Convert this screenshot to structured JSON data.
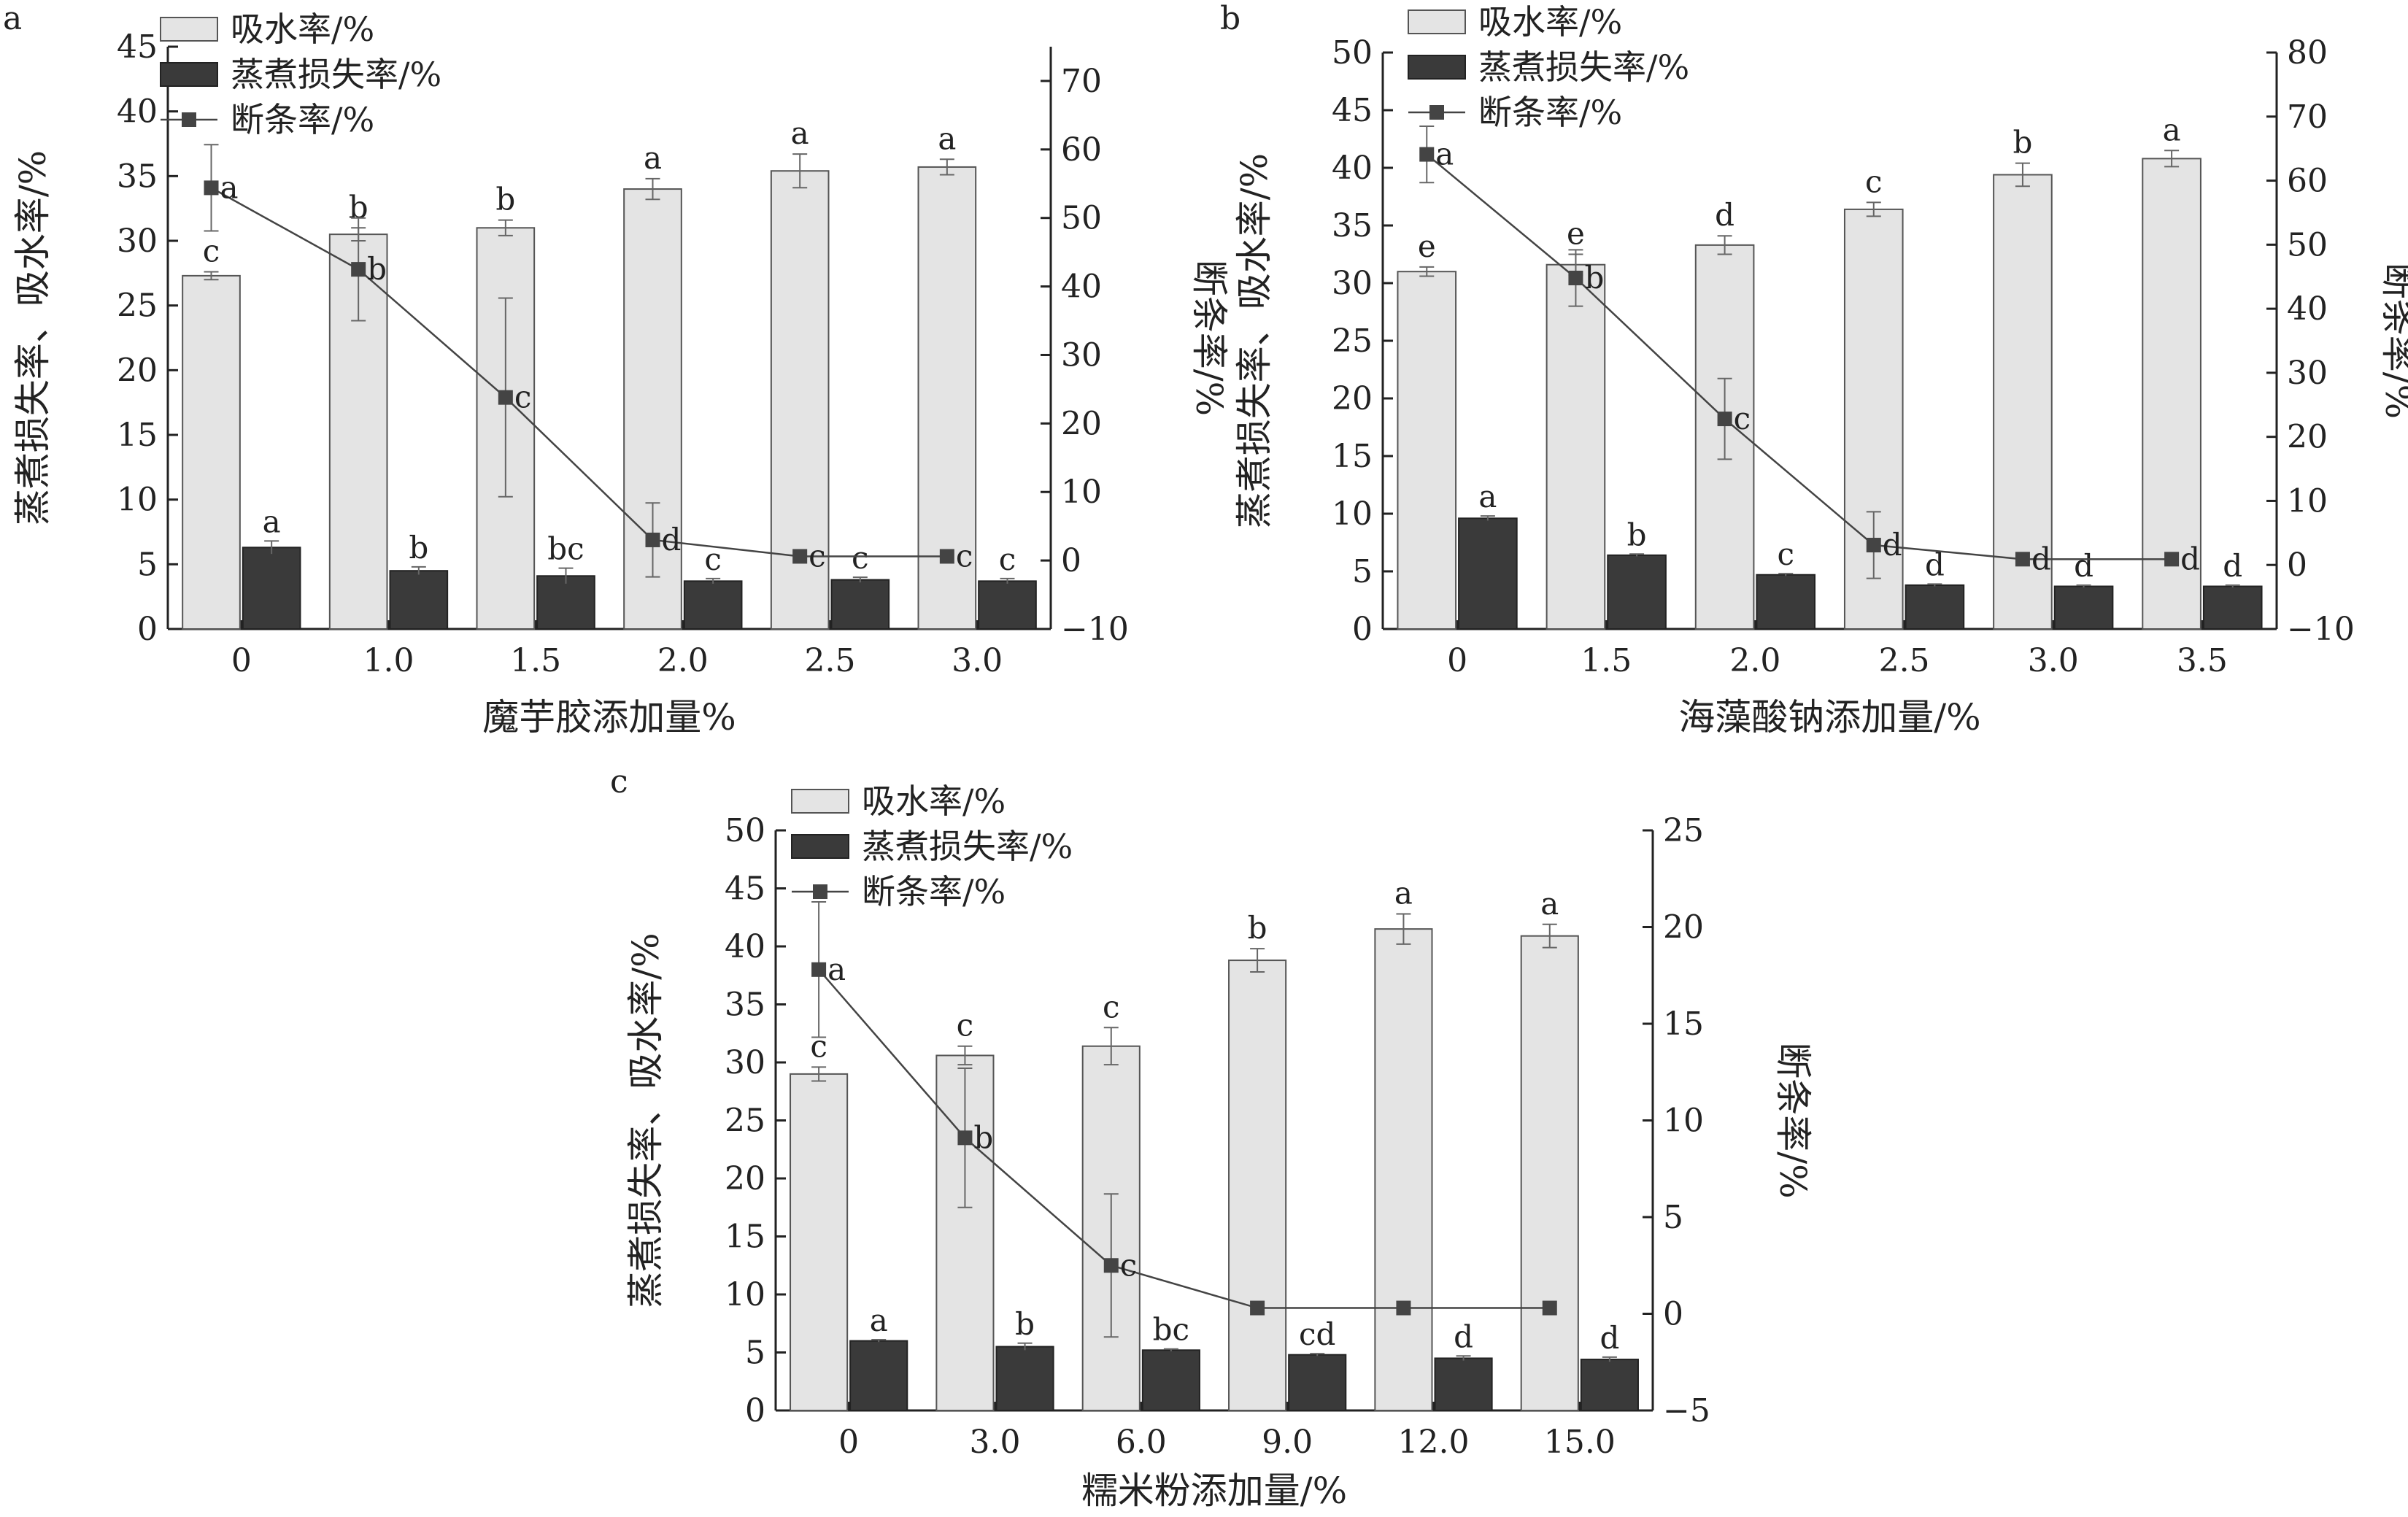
{
  "chart_data": [
    {
      "panel": "a",
      "type": "bar",
      "xlabel": "魔芋胶添加量%",
      "ylabel_left": "蒸煮损失率、吸水率/%",
      "ylabel_right": "断条率/%",
      "ylim_left": [
        0,
        45
      ],
      "ylim_right": [
        -10,
        75
      ],
      "yticks_left": [
        "0",
        "5",
        "10",
        "15",
        "20",
        "25",
        "30",
        "35",
        "40",
        "45"
      ],
      "yticks_right": [
        "−10",
        "0",
        "10",
        "20",
        "30",
        "40",
        "50",
        "60",
        "70"
      ],
      "categories": [
        "0",
        "1.0",
        "1.5",
        "2.0",
        "2.5",
        "3.0"
      ],
      "legend": [
        "吸水率/%",
        "蒸煮损失率/%",
        "断条率/%"
      ],
      "series": [
        {
          "name": "吸水率/%",
          "axis": "left",
          "kind": "bar",
          "values": [
            27.3,
            30.5,
            31.0,
            34.0,
            35.4,
            35.7
          ],
          "errors": [
            0.3,
            0.5,
            0.6,
            0.8,
            1.3,
            0.6
          ],
          "letters": [
            "c",
            "b",
            "b",
            "a",
            "a",
            "a"
          ]
        },
        {
          "name": "蒸煮损失率/%",
          "axis": "left",
          "kind": "bar",
          "values": [
            6.3,
            4.5,
            4.1,
            3.7,
            3.8,
            3.7
          ],
          "errors": [
            0.5,
            0.3,
            0.6,
            0.2,
            0.2,
            0.2
          ],
          "letters": [
            "a",
            "b",
            "bc",
            "c",
            "c",
            "c"
          ]
        },
        {
          "name": "断条率/%",
          "axis": "right",
          "kind": "line",
          "values": [
            54.4,
            42.5,
            23.8,
            3.0,
            0.6,
            0.6
          ],
          "errors": [
            6.3,
            7.5,
            14.5,
            5.4,
            0,
            0
          ],
          "letters": [
            "a",
            "b",
            "c",
            "d",
            "c",
            "c"
          ]
        }
      ]
    },
    {
      "panel": "b",
      "type": "bar",
      "xlabel": "海藻酸钠添加量/%",
      "ylabel_left": "蒸煮损失率、吸水率/%",
      "ylabel_right": "断条率/%",
      "ylim_left": [
        0,
        50
      ],
      "ylim_right": [
        -10,
        80
      ],
      "yticks_left": [
        "0",
        "5",
        "10",
        "15",
        "20",
        "25",
        "30",
        "35",
        "40",
        "45",
        "50"
      ],
      "yticks_right": [
        "−10",
        "0",
        "10",
        "20",
        "30",
        "40",
        "50",
        "60",
        "70",
        "80"
      ],
      "categories": [
        "0",
        "1.5",
        "2.0",
        "2.5",
        "3.0",
        "3.5"
      ],
      "legend": [
        "吸水率/%",
        "蒸煮损失率/%",
        "断条率/%"
      ],
      "series": [
        {
          "name": "吸水率/%",
          "axis": "left",
          "kind": "bar",
          "values": [
            31.0,
            31.6,
            33.3,
            36.4,
            39.4,
            40.8
          ],
          "errors": [
            0.4,
            0.9,
            0.8,
            0.6,
            1.0,
            0.7
          ],
          "letters": [
            "e",
            "e",
            "d",
            "c",
            "b",
            "a"
          ]
        },
        {
          "name": "蒸煮损失率/%",
          "axis": "left",
          "kind": "bar",
          "values": [
            9.6,
            6.4,
            4.7,
            3.8,
            3.7,
            3.7
          ],
          "errors": [
            0.2,
            0.1,
            0.1,
            0.1,
            0.1,
            0.1
          ],
          "letters": [
            "a",
            "b",
            "c",
            "d",
            "d",
            "d"
          ]
        },
        {
          "name": "断条率/%",
          "axis": "right",
          "kind": "line",
          "values": [
            64.1,
            44.8,
            22.8,
            3.1,
            0.9,
            0.9
          ],
          "errors": [
            4.4,
            4.4,
            6.3,
            5.2,
            0,
            0
          ],
          "letters": [
            "a",
            "b",
            "c",
            "d",
            "d",
            "d"
          ]
        }
      ]
    },
    {
      "panel": "c",
      "type": "bar",
      "xlabel": "糯米粉添加量/%",
      "ylabel_left": "蒸煮损失率、吸水率/%",
      "ylabel_right": "断条率/%",
      "ylim_left": [
        0,
        50
      ],
      "ylim_right": [
        -5,
        25
      ],
      "yticks_left": [
        "0",
        "5",
        "10",
        "15",
        "20",
        "25",
        "30",
        "35",
        "40",
        "45",
        "50"
      ],
      "yticks_right": [
        "−5",
        "0",
        "5",
        "10",
        "15",
        "20",
        "25"
      ],
      "categories": [
        "0",
        "3.0",
        "6.0",
        "9.0",
        "12.0",
        "15.0"
      ],
      "legend": [
        "吸水率/%",
        "蒸煮损失率/%",
        "断条率/%"
      ],
      "series": [
        {
          "name": "吸水率/%",
          "axis": "left",
          "kind": "bar",
          "values": [
            29.0,
            30.6,
            31.4,
            38.8,
            41.5,
            40.9
          ],
          "errors": [
            0.6,
            0.8,
            1.6,
            1.0,
            1.3,
            1.0
          ],
          "letters": [
            "c",
            "c",
            "c",
            "b",
            "a",
            "a"
          ]
        },
        {
          "name": "蒸煮损失率/%",
          "axis": "left",
          "kind": "bar",
          "values": [
            6.0,
            5.5,
            5.2,
            4.8,
            4.5,
            4.4
          ],
          "errors": [
            0.1,
            0.3,
            0.1,
            0.1,
            0.2,
            0.2
          ],
          "letters": [
            "a",
            "b",
            "bc",
            "cd",
            "d",
            "d"
          ]
        },
        {
          "name": "断条率/%",
          "axis": "right",
          "kind": "line",
          "values": [
            17.8,
            9.1,
            2.5,
            0.3,
            0.3,
            0.3
          ],
          "errors": [
            3.5,
            3.6,
            3.7,
            0,
            0,
            0
          ],
          "letters": [
            "a",
            "b",
            "c",
            "",
            "",
            ""
          ]
        }
      ]
    }
  ]
}
